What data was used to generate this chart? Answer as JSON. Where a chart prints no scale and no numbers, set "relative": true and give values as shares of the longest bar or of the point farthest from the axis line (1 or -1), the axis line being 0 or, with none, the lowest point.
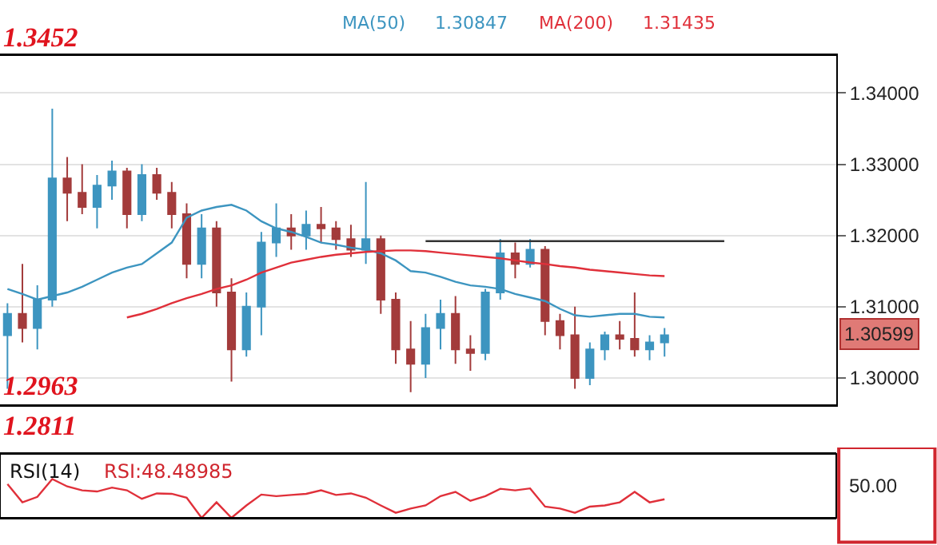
{
  "chart_data": [
    {
      "type": "candlestick",
      "categories": [
        null,
        null,
        null,
        null,
        null,
        null,
        null,
        null,
        null,
        null,
        null,
        null,
        null,
        null,
        null,
        null,
        null,
        null,
        null,
        null,
        null,
        null,
        null,
        null,
        null,
        null,
        null,
        null,
        null,
        null,
        null,
        null,
        null,
        null,
        null,
        null,
        null,
        null,
        null,
        null,
        null,
        null,
        null,
        null,
        null,
        null,
        null,
        null,
        null,
        null,
        null,
        null,
        null,
        null,
        null,
        null
      ],
      "ohlc": [
        [
          1.306,
          1.3105,
          1.2985,
          1.309
        ],
        [
          1.309,
          1.316,
          1.305,
          1.307
        ],
        [
          1.307,
          1.313,
          1.304,
          1.311
        ],
        [
          1.311,
          1.3378,
          1.31,
          1.328
        ],
        [
          1.328,
          1.331,
          1.322,
          1.326
        ],
        [
          1.326,
          1.33,
          1.323,
          1.324
        ],
        [
          1.324,
          1.3285,
          1.321,
          1.327
        ],
        [
          1.327,
          1.3305,
          1.325,
          1.329
        ],
        [
          1.329,
          1.3295,
          1.321,
          1.323
        ],
        [
          1.323,
          1.33,
          1.322,
          1.3285
        ],
        [
          1.3285,
          1.3295,
          1.325,
          1.326
        ],
        [
          1.326,
          1.3275,
          1.321,
          1.323
        ],
        [
          1.323,
          1.3245,
          1.314,
          1.316
        ],
        [
          1.316,
          1.323,
          1.314,
          1.321
        ],
        [
          1.321,
          1.322,
          1.31,
          1.312
        ],
        [
          1.312,
          1.314,
          1.2995,
          1.304
        ],
        [
          1.304,
          1.312,
          1.303,
          1.31
        ],
        [
          1.31,
          1.3205,
          1.306,
          1.319
        ],
        [
          1.319,
          1.3245,
          1.317,
          1.321
        ],
        [
          1.321,
          1.323,
          1.318,
          1.32
        ],
        [
          1.32,
          1.3235,
          1.318,
          1.3215
        ],
        [
          1.3215,
          1.324,
          1.319,
          1.321
        ],
        [
          1.321,
          1.322,
          1.318,
          1.3195
        ],
        [
          1.3195,
          1.3215,
          1.317,
          1.318
        ],
        [
          1.318,
          1.3275,
          1.316,
          1.3195
        ],
        [
          1.3195,
          1.32,
          1.309,
          1.311
        ],
        [
          1.311,
          1.312,
          1.302,
          1.304
        ],
        [
          1.304,
          1.308,
          1.298,
          1.302
        ],
        [
          1.302,
          1.309,
          1.3,
          1.307
        ],
        [
          1.307,
          1.311,
          1.304,
          1.309
        ],
        [
          1.309,
          1.3115,
          1.302,
          1.304
        ],
        [
          1.304,
          1.306,
          1.301,
          1.3035
        ],
        [
          1.3035,
          1.3125,
          1.3025,
          1.312
        ],
        [
          1.312,
          1.3195,
          1.311,
          1.3175
        ],
        [
          1.3175,
          1.319,
          1.314,
          1.316
        ],
        [
          1.316,
          1.3195,
          1.3155,
          1.318
        ],
        [
          1.318,
          1.3185,
          1.306,
          1.308
        ],
        [
          1.308,
          1.309,
          1.304,
          1.306
        ],
        [
          1.306,
          1.31,
          1.2985,
          1.3
        ],
        [
          1.3,
          1.305,
          1.299,
          1.304
        ],
        [
          1.304,
          1.3065,
          1.3025,
          1.306
        ],
        [
          1.306,
          1.308,
          1.304,
          1.3055
        ],
        [
          1.3055,
          1.312,
          1.303,
          1.304
        ],
        [
          1.304,
          1.306,
          1.3025,
          1.305
        ],
        [
          1.305,
          1.307,
          1.303,
          1.306
        ],
        null,
        null,
        null,
        null,
        null,
        null,
        null,
        null,
        null,
        null,
        null
      ],
      "colors": [
        "#3d95c0",
        "#a33b3b",
        "#3d95c0",
        "#3d95c0",
        "#a33b3b",
        "#a33b3b",
        "#3d95c0",
        "#3d95c0",
        "#a33b3b",
        "#3d95c0",
        "#a33b3b",
        "#a33b3b",
        "#a33b3b",
        "#3d95c0",
        "#a33b3b",
        "#a33b3b",
        "#3d95c0",
        "#3d95c0",
        "#3d95c0",
        "#a33b3b",
        "#3d95c0",
        "#a33b3b",
        "#a33b3b",
        "#a33b3b",
        "#3d95c0",
        "#a33b3b",
        "#a33b3b",
        "#a33b3b",
        "#3d95c0",
        "#3d95c0",
        "#a33b3b",
        "#a33b3b",
        "#3d95c0",
        "#3d95c0",
        "#a33b3b",
        "#3d95c0",
        "#a33b3b",
        "#a33b3b",
        "#a33b3b",
        "#3d95c0",
        "#3d95c0",
        "#a33b3b",
        "#a33b3b",
        "#3d95c0",
        "#3d95c0",
        null,
        null,
        null,
        null,
        null,
        null,
        null,
        null,
        null,
        null,
        null
      ],
      "series": [
        {
          "type": "line",
          "name": "MA(50)",
          "color": "#3d95c0",
          "values": [
            1.3125,
            1.3118,
            1.311,
            1.3115,
            1.312,
            1.3128,
            1.3138,
            1.3148,
            1.3155,
            1.316,
            1.3175,
            1.319,
            1.3225,
            1.3235,
            1.324,
            1.3243,
            1.3235,
            1.322,
            1.321,
            1.3205,
            1.3198,
            1.319,
            1.3187,
            1.3183,
            1.318,
            1.3175,
            1.3165,
            1.315,
            1.3148,
            1.3142,
            1.3135,
            1.313,
            1.3128,
            1.3125,
            1.3118,
            1.3113,
            1.3108,
            1.3097,
            1.3088,
            1.3086,
            1.3088,
            1.309,
            1.309,
            1.3086,
            1.3085,
            null,
            null,
            null,
            null,
            null,
            null,
            null,
            null,
            null,
            null,
            null
          ]
        },
        {
          "type": "line",
          "name": "MA(200)",
          "color": "#e0303a",
          "values": [
            null,
            null,
            null,
            null,
            null,
            null,
            null,
            null,
            1.3085,
            1.309,
            1.3097,
            1.3105,
            1.3112,
            1.3118,
            1.3125,
            1.313,
            1.3138,
            1.3148,
            1.3155,
            1.3162,
            1.3166,
            1.317,
            1.3173,
            1.3175,
            1.3177,
            1.3178,
            1.3179,
            1.3179,
            1.3178,
            1.3176,
            1.3174,
            1.3172,
            1.317,
            1.3168,
            1.3165,
            1.3162,
            1.316,
            1.3157,
            1.3155,
            1.3152,
            1.315,
            1.3148,
            1.3146,
            1.3144,
            1.3143,
            null,
            null,
            null,
            null,
            null,
            null,
            null,
            null,
            null,
            null,
            null
          ]
        },
        {
          "type": "line",
          "color": "#333333",
          "values": [
            null,
            null,
            null,
            null,
            null,
            null,
            null,
            null,
            null,
            null,
            null,
            null,
            null,
            null,
            null,
            null,
            null,
            null,
            null,
            null,
            null,
            null,
            null,
            null,
            null,
            null,
            null,
            null,
            1.3192,
            1.3192,
            1.3192,
            1.3192,
            1.3192,
            1.3192,
            1.3192,
            1.3192,
            1.3192,
            1.3192,
            1.3192,
            1.3192,
            1.3192,
            1.3192,
            1.3192,
            1.3192,
            1.3192,
            1.3192,
            1.3192,
            1.3192,
            1.3192,
            null,
            null,
            null,
            null,
            null,
            null,
            null
          ]
        }
      ],
      "ylim": [
        1.2963,
        1.3452
      ],
      "yticks": [
        {
          "value": 1.3,
          "label": "1.30000"
        },
        {
          "value": 1.31,
          "label": "1.31000"
        },
        {
          "value": 1.32,
          "label": "1.32000"
        },
        {
          "value": 1.33,
          "label": "1.33000"
        },
        {
          "value": 1.34,
          "label": "1.34000"
        }
      ],
      "grid": "y",
      "legend": false,
      "tick_labels": "y",
      "annotations": [
        "1.3452",
        "1.2963",
        "1.2811",
        "1.30847",
        "1.31435",
        "1.30599"
      ]
    },
    {
      "type": "line",
      "title": "RSI(14)",
      "relative": true,
      "tick_labels": false,
      "categories": [
        null,
        null,
        null,
        null,
        null,
        null,
        null,
        null,
        null,
        null,
        null,
        null,
        null,
        null,
        null,
        null,
        null,
        null,
        null,
        null,
        null,
        null,
        null,
        null,
        null,
        null,
        null,
        null,
        null,
        null,
        null,
        null,
        null,
        null,
        null,
        null,
        null,
        null,
        null,
        null,
        null,
        null,
        null,
        null,
        null,
        null,
        null,
        null,
        null,
        null,
        null,
        null,
        null,
        null,
        null,
        null
      ],
      "series": [
        {
          "color": "#e0303a",
          "values": [
            0.87,
            0.4,
            0.54,
            1,
            0.81,
            0.71,
            0.68,
            0.78,
            0.71,
            0.49,
            0.63,
            0.62,
            0.52,
            0,
            0.4,
            0,
            0.32,
            0.6,
            0.56,
            0.59,
            0.62,
            0.71,
            0.59,
            0.63,
            0.52,
            0.32,
            0.13,
            0.24,
            0.32,
            0.56,
            0.67,
            0.44,
            0.56,
            0.75,
            0.71,
            0.76,
            0.29,
            0.24,
            0.13,
            0.29,
            0.32,
            0.4,
            0.67,
            0.4,
            0.48,
            null,
            null,
            null,
            null,
            null,
            null,
            null,
            null,
            null,
            null,
            null
          ]
        }
      ],
      "annotations": [
        "RSI:48.48985",
        "50.00"
      ]
    }
  ]
}
